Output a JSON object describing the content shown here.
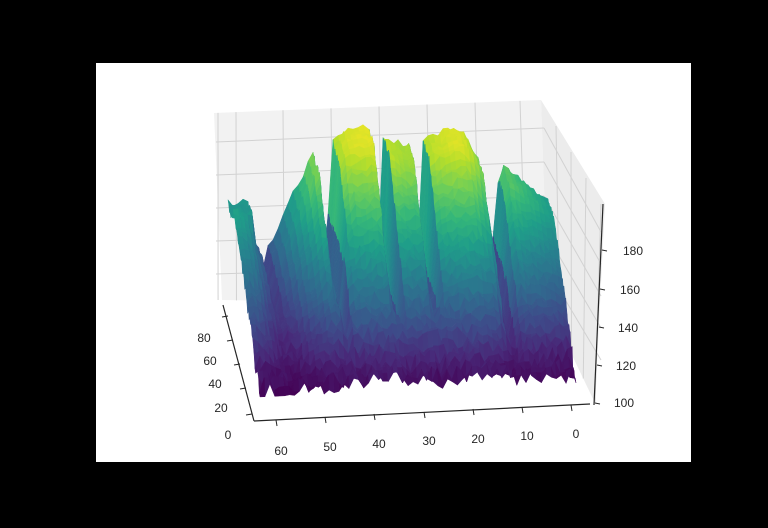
{
  "chart_data": {
    "type": "surface",
    "title": "",
    "xlabel": "",
    "ylabel": "",
    "zlabel": "",
    "colormap": "viridis",
    "colors": {
      "figure_background": "#000000",
      "axes_background": "#ffffff",
      "pane": "#f2f2f2",
      "grid": "#d2d2d2",
      "axis_line": "#262626",
      "tick_text": "#262626"
    },
    "x_axis": {
      "range": [
        0,
        65
      ],
      "ticks": [
        "60",
        "50",
        "40",
        "30",
        "20",
        "10",
        "0"
      ]
    },
    "y_axis": {
      "range": [
        0,
        90
      ],
      "ticks": [
        "80",
        "60",
        "40",
        "20",
        "0"
      ]
    },
    "z_axis": {
      "range": [
        95,
        190
      ],
      "ticks": [
        "100",
        "120",
        "140",
        "160",
        "180"
      ]
    },
    "surface_profile_along_x": {
      "x": [
        0,
        3,
        5,
        7,
        9,
        10,
        12,
        14,
        15,
        17,
        18,
        20,
        22,
        24,
        26,
        28,
        29,
        31,
        33,
        35,
        36,
        38,
        40,
        42,
        43,
        45,
        47,
        48,
        50,
        52,
        54,
        56,
        58,
        60,
        62,
        64
      ],
      "z_max": [
        150,
        155,
        160,
        163,
        168,
        164,
        124,
        170,
        175,
        184,
        186,
        187,
        185,
        183,
        180,
        180,
        178,
        180,
        182,
        186,
        188,
        188,
        186,
        186,
        182,
        175,
        166,
        176,
        162,
        152,
        140,
        128,
        122,
        130,
        146,
        152
      ]
    },
    "valleys": [
      {
        "x": 12,
        "z_min": 105
      },
      {
        "x": 27,
        "z_min": 108
      },
      {
        "x": 35,
        "z_min": 106
      },
      {
        "x": 46,
        "z_min": 104
      },
      {
        "x": 58,
        "z_min": 110
      }
    ],
    "surface_floor_z": 100
  }
}
